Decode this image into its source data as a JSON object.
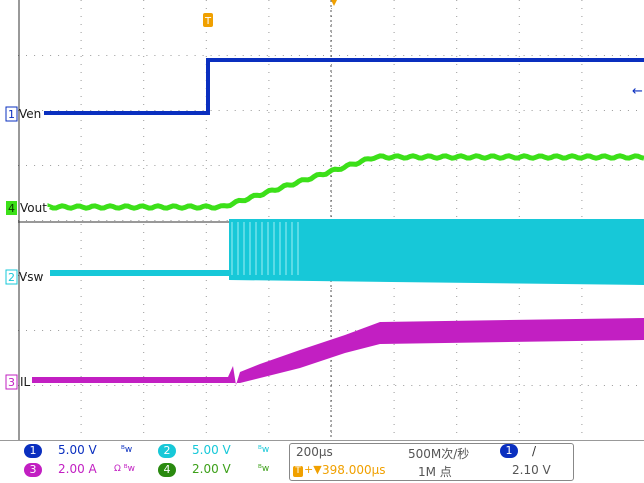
{
  "colors": {
    "ch1": "#0a2fbf",
    "ch2": "#17c8d8",
    "ch3": "#c21fc2",
    "ch4": "#3ce019",
    "trigger": "#f0a000"
  },
  "trace_labels": {
    "ch1": "Ven",
    "ch4": "Vout",
    "ch2": "Vsw",
    "ch3": "IL"
  },
  "channel_numbers": {
    "ch1": "1",
    "ch2": "2",
    "ch3": "3",
    "ch4": "4"
  },
  "trigger_marker": "T",
  "channels": [
    {
      "id": "1",
      "scale": "5.00 V",
      "coupling_icon": "bandwidth-limit-icon"
    },
    {
      "id": "2",
      "scale": "5.00 V",
      "coupling_icon": "bandwidth-limit-icon"
    },
    {
      "id": "3",
      "scale": "2.00 A",
      "coupling_icon": "current-ohm-icon"
    },
    {
      "id": "4",
      "scale": "2.00 V",
      "coupling_icon": "bandwidth-limit-icon"
    }
  ],
  "timebase": {
    "scale": "200µs",
    "trigger_offset": "398.000µs",
    "sample_rate": "500M次/秒",
    "record_length": "1M 点"
  },
  "trigger": {
    "source": "1",
    "slope_icon": "rising-edge-icon",
    "level": "2.10 V"
  }
}
